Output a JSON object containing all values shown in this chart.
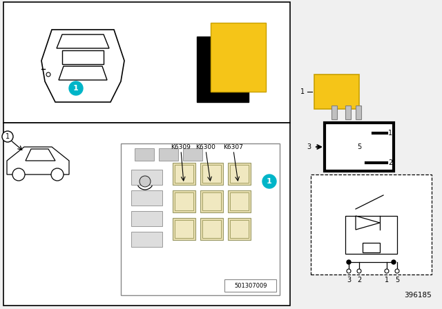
{
  "bg_color": "#f0f0f0",
  "white": "#ffffff",
  "black": "#000000",
  "yellow": "#f5c518",
  "dark_yellow": "#c8a000",
  "teal": "#00b5c8",
  "gray_light": "#d0d0d0",
  "part_number": "396185",
  "diagram_number": "501307009",
  "relay_labels": [
    "K6309",
    "K6300",
    "K6307"
  ],
  "pin_labels": [
    "3",
    "2",
    "1",
    "5"
  ],
  "callout_number": "1"
}
